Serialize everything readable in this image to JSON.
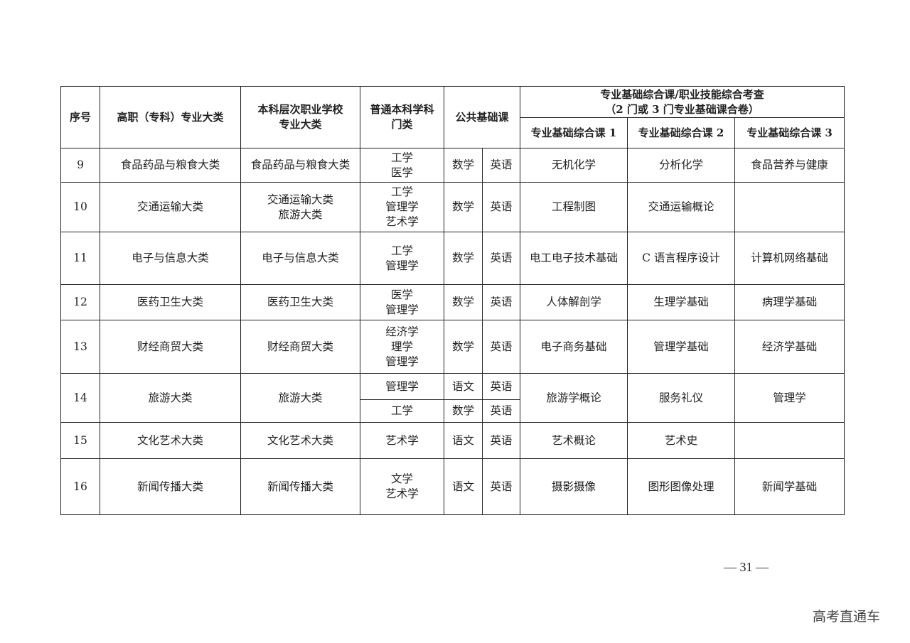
{
  "header": {
    "seq": "序号",
    "vocational": "高职（专科）专业大类",
    "bachelor_vocational": [
      "本科层次职业学校",
      "专业大类"
    ],
    "regular_discipline": [
      "普通本科学科",
      "门类"
    ],
    "public_basic": "公共基础课",
    "professional_group": [
      "专业基础综合课/职业技能综合考查",
      "（2 门或 3 门专业基础课合卷）"
    ],
    "prof1": "专业基础综合课 1",
    "prof2": "专业基础综合课 2",
    "prof3": "专业基础综合课 3"
  },
  "rows": [
    {
      "seq": "9",
      "vocational": "食品药品与粮食大类",
      "bachelor": [
        "食品药品与粮食大类"
      ],
      "subrows": [
        {
          "discipline": [
            "工学",
            "医学"
          ],
          "public": [
            "数学",
            "英语"
          ]
        }
      ],
      "prof": [
        "无机化学",
        "分析化学",
        "食品营养与健康"
      ]
    },
    {
      "seq": "10",
      "vocational": "交通运输大类",
      "bachelor": [
        "交通运输大类",
        "旅游大类"
      ],
      "subrows": [
        {
          "discipline": [
            "工学",
            "管理学",
            "艺术学"
          ],
          "public": [
            "数学",
            "英语"
          ]
        }
      ],
      "prof": [
        "工程制图",
        "交通运输概论",
        ""
      ]
    },
    {
      "seq": "11",
      "vocational": "电子与信息大类",
      "bachelor": [
        "电子与信息大类"
      ],
      "subrows": [
        {
          "discipline": [
            "工学",
            "管理学"
          ],
          "public": [
            "数学",
            "英语"
          ]
        }
      ],
      "prof": [
        "电工电子技术基础",
        "C 语言程序设计",
        "计算机网络基础"
      ]
    },
    {
      "seq": "12",
      "vocational": "医药卫生大类",
      "bachelor": [
        "医药卫生大类"
      ],
      "subrows": [
        {
          "discipline": [
            "医学",
            "管理学"
          ],
          "public": [
            "数学",
            "英语"
          ]
        }
      ],
      "prof": [
        "人体解剖学",
        "生理学基础",
        "病理学基础"
      ]
    },
    {
      "seq": "13",
      "vocational": "财经商贸大类",
      "bachelor": [
        "财经商贸大类"
      ],
      "subrows": [
        {
          "discipline": [
            "经济学",
            "理学",
            "管理学"
          ],
          "public": [
            "数学",
            "英语"
          ]
        }
      ],
      "prof": [
        "电子商务基础",
        "管理学基础",
        "经济学基础"
      ]
    },
    {
      "seq": "14",
      "vocational": "旅游大类",
      "bachelor": [
        "旅游大类"
      ],
      "subrows": [
        {
          "discipline": [
            "管理学"
          ],
          "public": [
            "语文",
            "英语"
          ]
        },
        {
          "discipline": [
            "工学"
          ],
          "public": [
            "数学",
            "英语"
          ]
        }
      ],
      "prof": [
        "旅游学概论",
        "服务礼仪",
        "管理学"
      ]
    },
    {
      "seq": "15",
      "vocational": "文化艺术大类",
      "bachelor": [
        "文化艺术大类"
      ],
      "subrows": [
        {
          "discipline": [
            "艺术学"
          ],
          "public": [
            "语文",
            "英语"
          ]
        }
      ],
      "prof": [
        "艺术概论",
        "艺术史",
        ""
      ]
    },
    {
      "seq": "16",
      "vocational": "新闻传播大类",
      "bachelor": [
        "新闻传播大类"
      ],
      "subrows": [
        {
          "discipline": [
            "文学",
            "艺术学"
          ],
          "public": [
            "语文",
            "英语"
          ]
        }
      ],
      "prof": [
        "摄影摄像",
        "图形图像处理",
        "新闻学基础"
      ]
    }
  ],
  "page_number": "— 31 —",
  "watermark": "高考直通车"
}
